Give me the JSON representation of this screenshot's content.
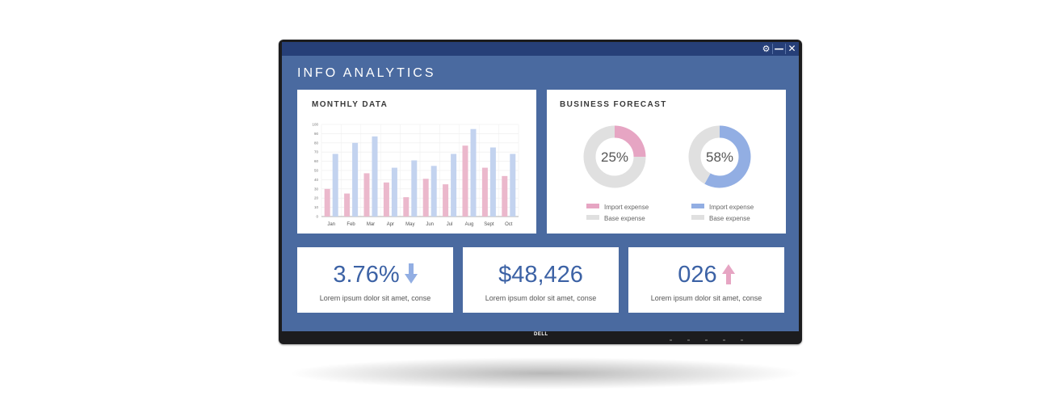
{
  "window": {
    "title": "INFO ANALYTICS",
    "controls": [
      "gear-icon",
      "minimize-icon",
      "close-icon"
    ]
  },
  "brand": {
    "logo_text": "DELL"
  },
  "colors": {
    "screen_bg": "#4a6aa0",
    "titlebar_bg": "#263f78",
    "pink": "#ebb8cc",
    "blue": "#c3d3ef",
    "donut_pink": "#e6a5c3",
    "donut_blue": "#92aee3",
    "donut_base": "#e0e0e0",
    "stat_text": "#3c62a5"
  },
  "monthly": {
    "title": "MONTHLY DATA",
    "chart_data": {
      "type": "bar",
      "categories": [
        "Jan",
        "Feb",
        "Mar",
        "Apr",
        "May",
        "Jun",
        "Jul",
        "Aug",
        "Sept",
        "Oct"
      ],
      "series": [
        {
          "values": [
            30,
            25,
            47,
            37,
            21,
            41,
            35,
            77,
            53,
            44
          ],
          "color": "#ebb8cc"
        },
        {
          "values": [
            68,
            80,
            87,
            53,
            61,
            55,
            68,
            95,
            75,
            68
          ],
          "color": "#c3d3ef"
        }
      ],
      "ylim": [
        0,
        100
      ],
      "yticks": [
        0,
        10,
        20,
        30,
        40,
        50,
        60,
        70,
        80,
        90,
        100
      ],
      "grid": true
    }
  },
  "forecast": {
    "title": "BUSINESS FORECAST",
    "chart_data": [
      {
        "type": "pie",
        "label": "25%",
        "slices": [
          {
            "name": "Import expense",
            "value": 25,
            "color": "#e6a5c3"
          },
          {
            "name": "Base expense",
            "value": 75,
            "color": "#e0e0e0"
          }
        ]
      },
      {
        "type": "pie",
        "label": "58%",
        "slices": [
          {
            "name": "Import expense",
            "value": 58,
            "color": "#92aee3"
          },
          {
            "name": "Base expense",
            "value": 42,
            "color": "#e0e0e0"
          }
        ]
      }
    ],
    "legends": [
      {
        "import_label": "Import expense",
        "base_label": "Base expense"
      },
      {
        "import_label": "Import expense",
        "base_label": "Base expense"
      }
    ]
  },
  "stats": [
    {
      "value": "3.76%",
      "trend_icon": "arrow-down-icon",
      "description": "Lorem ipsum dolor sit amet, conse"
    },
    {
      "value": "$48,426",
      "trend_icon": "",
      "description": "Lorem ipsum dolor sit amet, conse"
    },
    {
      "value": "026",
      "trend_icon": "arrow-up-icon",
      "description": "Lorem ipsum dolor sit amet, conse"
    }
  ]
}
